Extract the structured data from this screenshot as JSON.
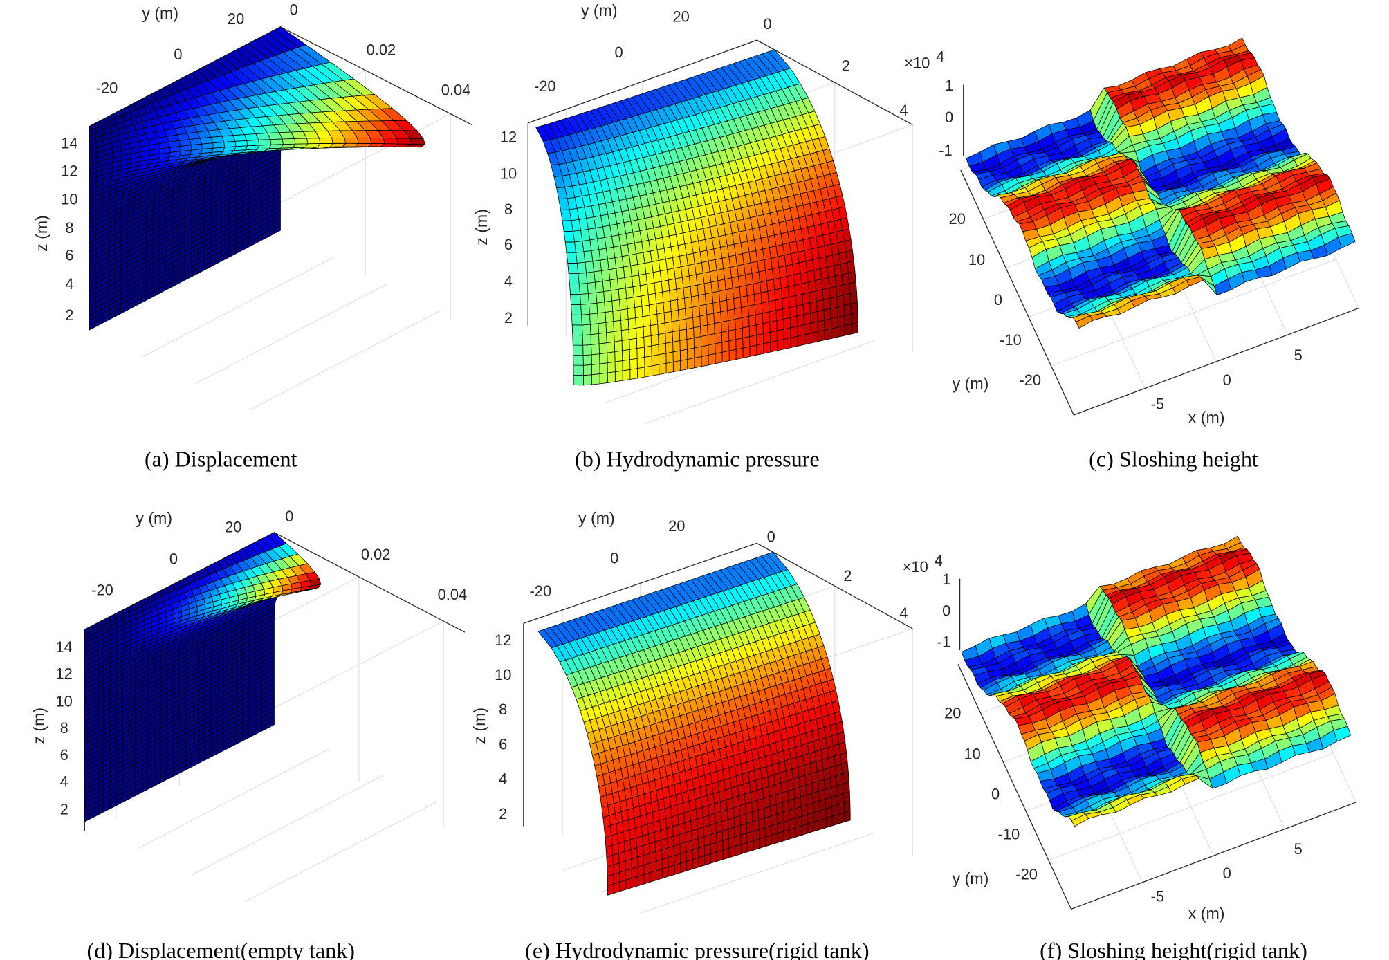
{
  "chart_data": [
    {
      "panel": "a",
      "type": "surface",
      "caption": "(a) Displacement",
      "colormap": "jet",
      "axes": {
        "y": {
          "label": "y (m)",
          "ticks": [
            "-20",
            "0",
            "20"
          ]
        },
        "x": {
          "label": "",
          "ticks": [
            "0",
            "0.02",
            "0.04"
          ]
        },
        "z": {
          "label": "z (m)",
          "ticks": [
            "14",
            "12",
            "10",
            "8",
            "6",
            "4",
            "2"
          ]
        }
      },
      "y_range": [
        -30,
        30
      ],
      "z_range": [
        0,
        15
      ],
      "value_range": [
        0,
        0.035
      ],
      "peak": {
        "value": 0.034,
        "z": 12,
        "y": 30
      }
    },
    {
      "panel": "b",
      "type": "surface",
      "caption": "(b) Hydrodynamic pressure",
      "colormap": "jet",
      "axes": {
        "y": {
          "label": "y (m)",
          "ticks": [
            "-20",
            "0",
            "20"
          ]
        },
        "x": {
          "label": "",
          "ticks": [
            "0",
            "2",
            "4"
          ],
          "multiplier_base": "×10",
          "multiplier_exp": "4"
        },
        "z": {
          "label": "z (m)",
          "ticks": [
            "12",
            "10",
            "8",
            "6",
            "4",
            "2"
          ]
        }
      },
      "y_range": [
        -30,
        30
      ],
      "z_range": [
        0,
        13
      ],
      "value_range": [
        0,
        26000
      ]
    },
    {
      "panel": "c",
      "type": "surface",
      "caption": "(c) Sloshing height",
      "colormap": "jet",
      "axes": {
        "y": {
          "label": "y (m)",
          "ticks": [
            "20",
            "10",
            "0",
            "-10",
            "-20"
          ]
        },
        "x": {
          "label": "x (m)",
          "ticks": [
            "-5",
            "0",
            "5"
          ]
        },
        "z": {
          "label": "",
          "ticks": [
            "1",
            "0",
            "-1"
          ]
        }
      },
      "x_range": [
        -10,
        10
      ],
      "y_range": [
        -30,
        30
      ],
      "value_range": [
        -1,
        1
      ]
    },
    {
      "panel": "d",
      "type": "surface",
      "caption": "(d) Displacement(empty tank)",
      "colormap": "jet",
      "axes": {
        "y": {
          "label": "y (m)",
          "ticks": [
            "-20",
            "0",
            "20"
          ]
        },
        "x": {
          "label": "",
          "ticks": [
            "0",
            "0.02",
            "0.04"
          ]
        },
        "z": {
          "label": "z (m)",
          "ticks": [
            "14",
            "12",
            "10",
            "8",
            "6",
            "4",
            "2"
          ]
        }
      },
      "y_range": [
        -30,
        30
      ],
      "z_range": [
        0,
        15
      ],
      "value_range": [
        0,
        0.011
      ],
      "peak": {
        "value": 0.011,
        "z": 13,
        "y": 30
      }
    },
    {
      "panel": "e",
      "type": "surface",
      "caption": "(e) Hydrodynamic pressure(rigid tank)",
      "colormap": "jet",
      "axes": {
        "y": {
          "label": "y (m)",
          "ticks": [
            "-20",
            "0",
            "20"
          ]
        },
        "x": {
          "label": "",
          "ticks": [
            "0",
            "2",
            "4"
          ],
          "multiplier_base": "×10",
          "multiplier_exp": "4"
        },
        "z": {
          "label": "z (m)",
          "ticks": [
            "12",
            "10",
            "8",
            "6",
            "4",
            "2"
          ]
        }
      },
      "y_range": [
        -30,
        30
      ],
      "z_range": [
        0,
        13
      ],
      "value_range": [
        0,
        24000
      ]
    },
    {
      "panel": "f",
      "type": "surface",
      "caption": "(f) Sloshing height(rigid tank)",
      "colormap": "jet",
      "axes": {
        "y": {
          "label": "y (m)",
          "ticks": [
            "20",
            "10",
            "0",
            "-10",
            "-20"
          ]
        },
        "x": {
          "label": "x (m)",
          "ticks": [
            "-5",
            "0",
            "5"
          ]
        },
        "z": {
          "label": "",
          "ticks": [
            "1",
            "0",
            "-1"
          ]
        }
      },
      "x_range": [
        -10,
        10
      ],
      "y_range": [
        -30,
        30
      ],
      "value_range": [
        -1,
        1
      ]
    }
  ]
}
